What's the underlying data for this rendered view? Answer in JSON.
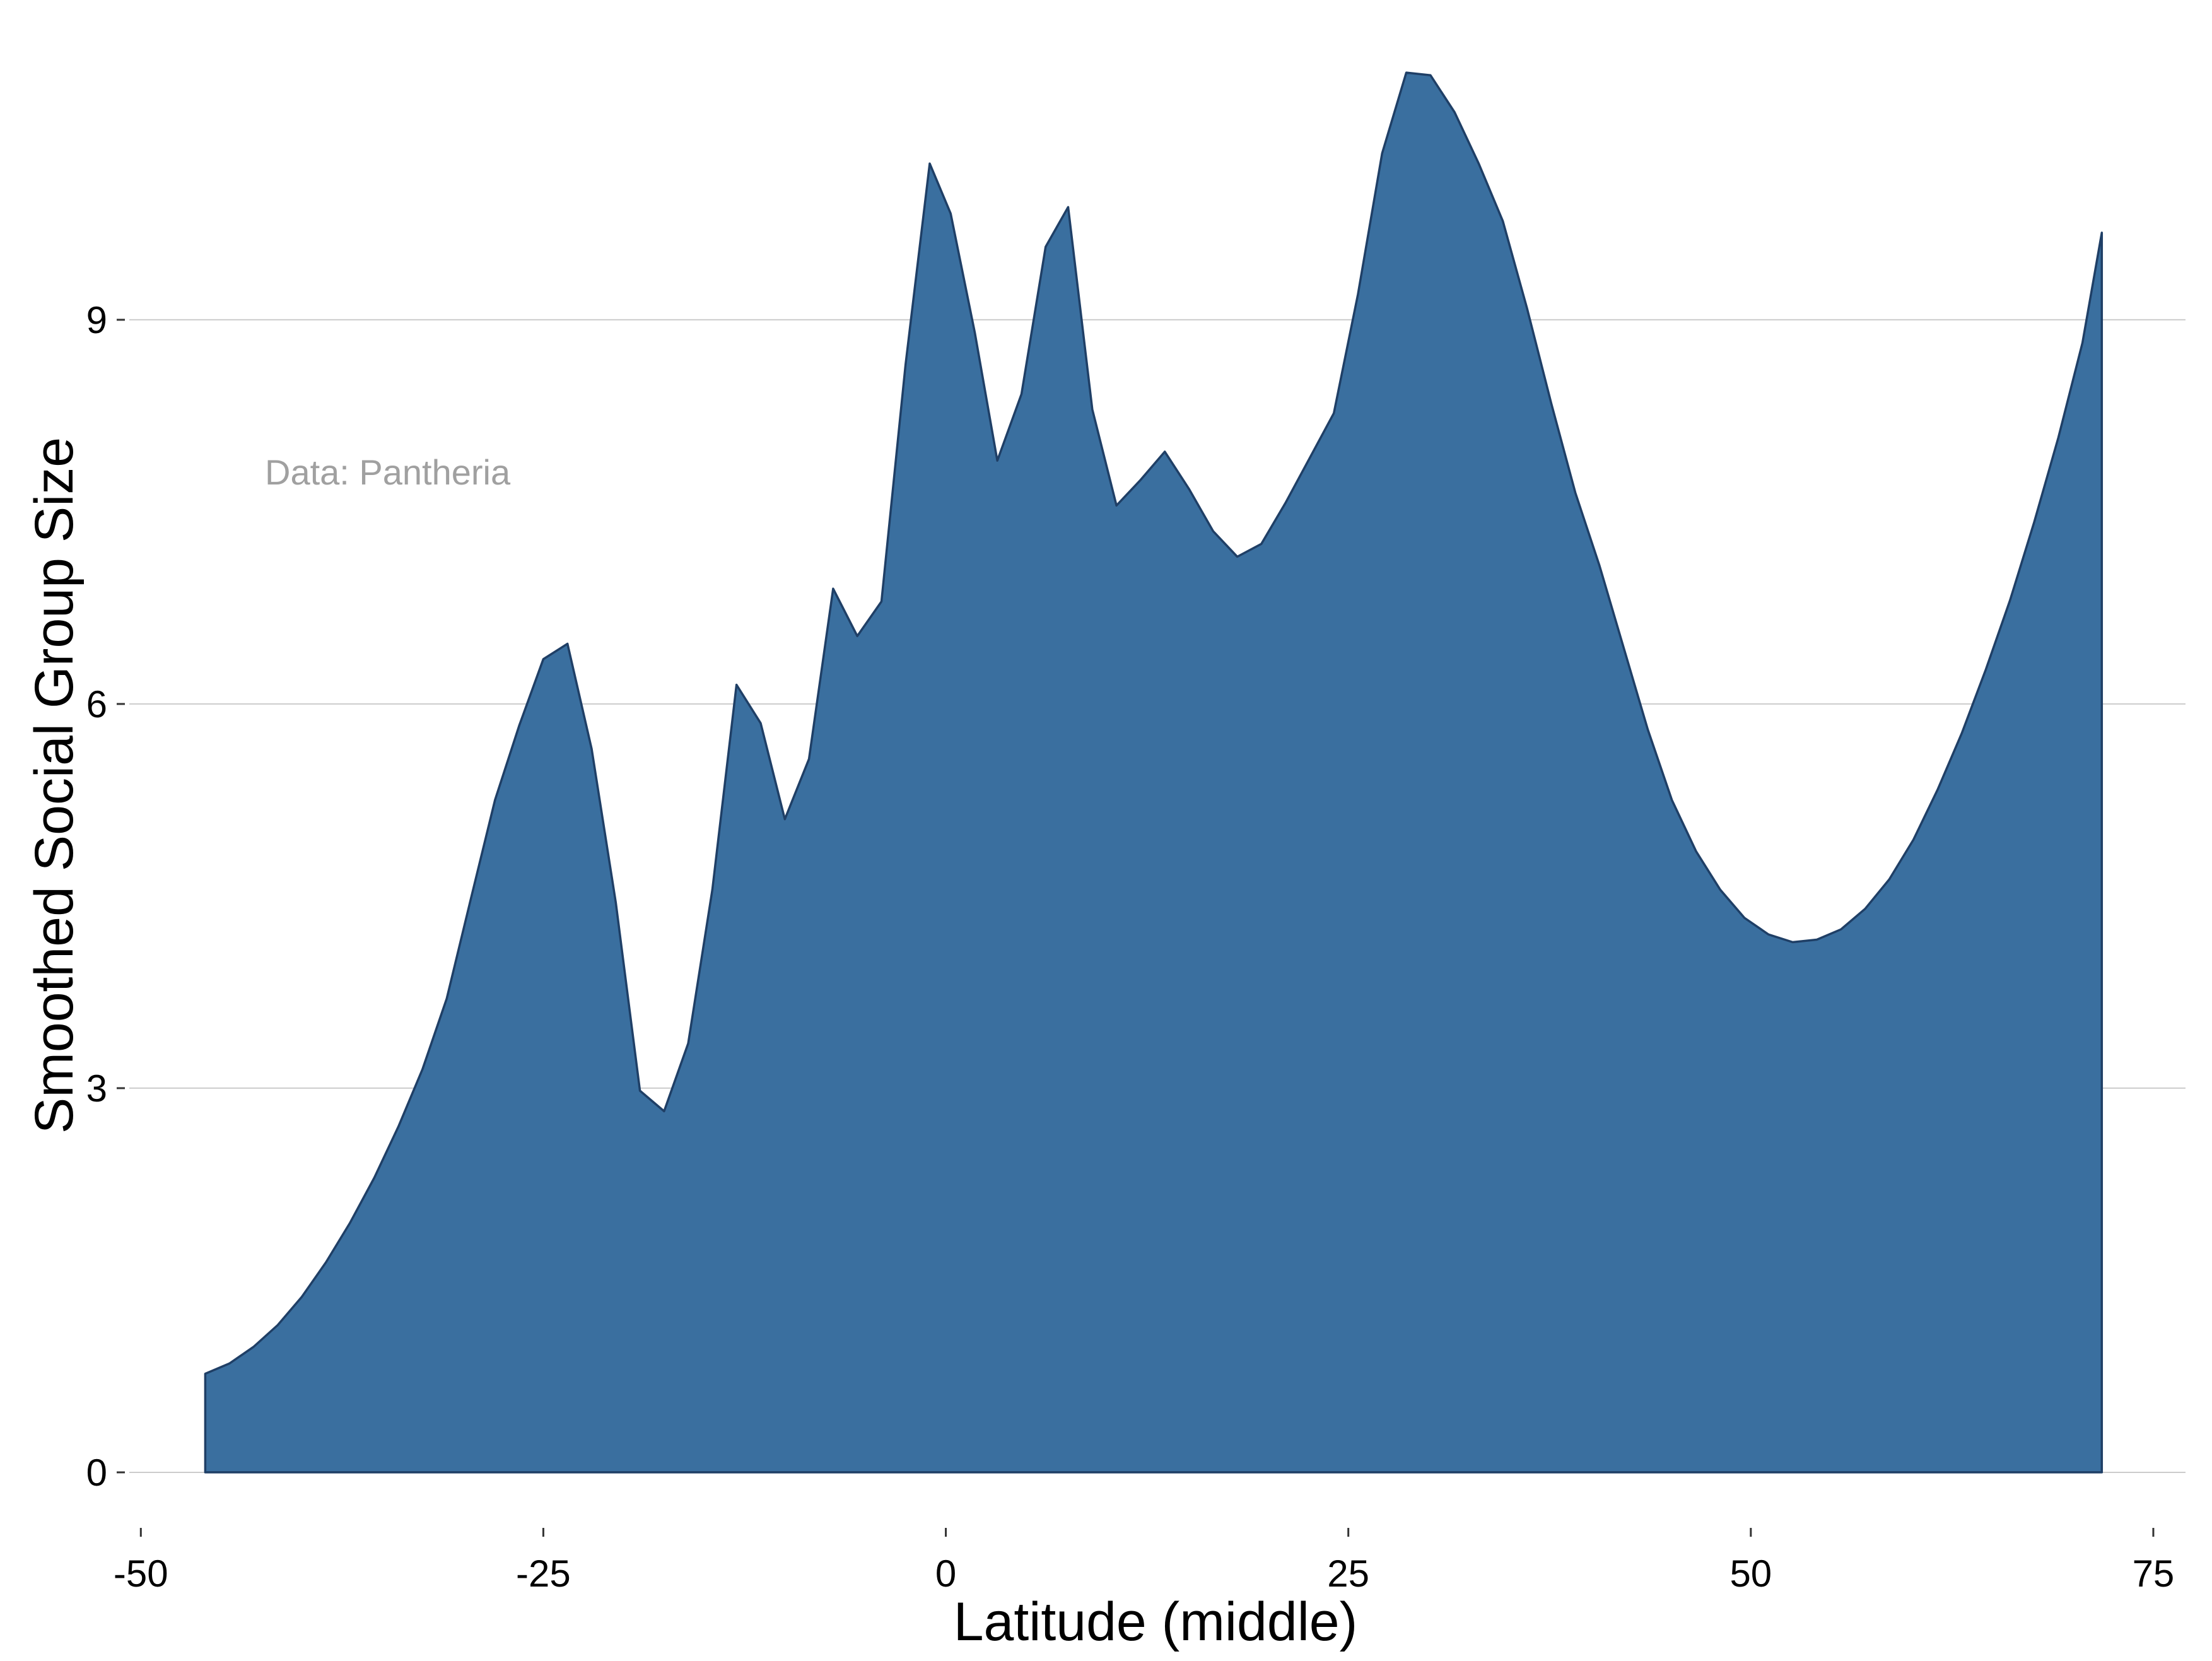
{
  "chart_data": {
    "type": "area",
    "xlabel": "Latitude (middle)",
    "ylabel": "Smoothed Social Group Size",
    "annotation": "Data: Pantheria",
    "xlim": [
      -51.5,
      77
    ],
    "ylim": [
      -0.35,
      11.3
    ],
    "xticks": [
      -50,
      -25,
      0,
      25,
      50,
      75
    ],
    "xtick_labels": [
      "-50",
      "-25",
      "0",
      "25",
      "50",
      "75"
    ],
    "yticks": [
      0,
      3,
      6,
      9
    ],
    "ytick_labels": [
      "0",
      "3",
      "6",
      "9"
    ],
    "grid": "horizontal major",
    "legend": "none",
    "colors": {
      "fill": "#3a6f9f",
      "line": "#1f3f66",
      "grid": "#cccccc",
      "annotation": "#a0a0a0"
    },
    "series": [
      {
        "x": [
          -46.0,
          -44.5,
          -43.0,
          -41.5,
          -40.0,
          -38.5,
          -37.0,
          -35.5,
          -34.0,
          -32.5,
          -31.0,
          -29.5,
          -28.0,
          -26.5,
          -25.0,
          -23.5,
          -22.0,
          -20.5,
          -19.0,
          -17.5,
          -16.0,
          -14.5,
          -13.0,
          -11.5,
          -10.0,
          -8.5,
          -7.0,
          -5.5,
          -4.0,
          -2.5,
          -1.0,
          0.3,
          1.8,
          3.2,
          4.7,
          6.2,
          7.6,
          9.1,
          10.6,
          12.1,
          13.6,
          15.1,
          16.6,
          18.1,
          19.6,
          21.1,
          22.6,
          24.1,
          25.6,
          27.1,
          28.6,
          30.1,
          31.6,
          33.1,
          34.6,
          36.1,
          37.6,
          39.1,
          40.6,
          42.1,
          43.6,
          45.1,
          46.6,
          48.1,
          49.6,
          51.1,
          52.6,
          54.1,
          55.6,
          57.1,
          58.6,
          60.1,
          61.6,
          63.1,
          64.6,
          66.1,
          67.6,
          69.1,
          70.6,
          71.8
        ],
        "y": [
          0.77,
          0.85,
          0.98,
          1.15,
          1.37,
          1.64,
          1.95,
          2.3,
          2.7,
          3.15,
          3.7,
          4.48,
          5.25,
          5.83,
          6.35,
          6.47,
          5.65,
          4.45,
          2.98,
          2.82,
          3.35,
          4.55,
          6.15,
          5.85,
          5.1,
          5.57,
          6.9,
          6.53,
          6.8,
          8.65,
          10.22,
          9.83,
          8.9,
          7.9,
          8.42,
          9.57,
          9.88,
          8.3,
          7.55,
          7.75,
          7.97,
          7.68,
          7.35,
          7.15,
          7.25,
          7.57,
          7.92,
          8.27,
          9.2,
          10.3,
          10.93,
          10.91,
          10.62,
          10.22,
          9.77,
          9.09,
          8.35,
          7.65,
          7.08,
          6.44,
          5.8,
          5.25,
          4.85,
          4.55,
          4.33,
          4.2,
          4.14,
          4.16,
          4.24,
          4.4,
          4.63,
          4.94,
          5.33,
          5.77,
          6.27,
          6.81,
          7.42,
          8.08,
          8.82,
          9.68
        ]
      }
    ]
  }
}
